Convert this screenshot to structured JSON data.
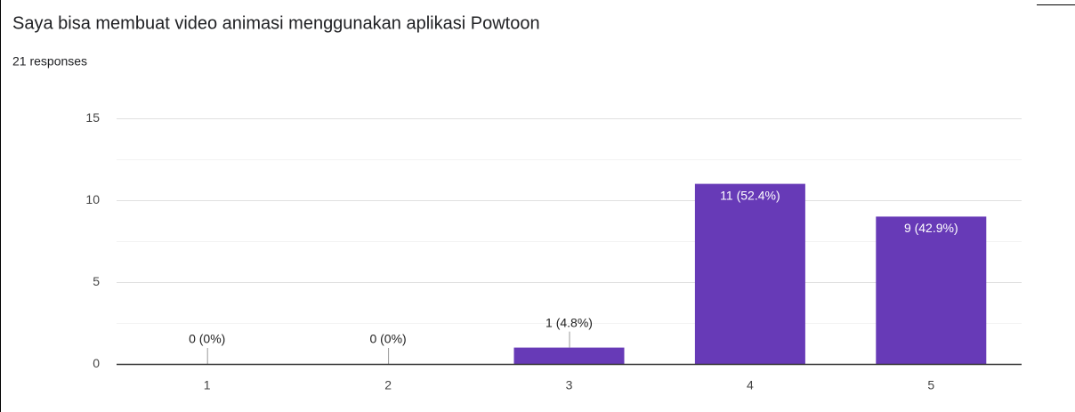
{
  "chart_data": {
    "type": "bar",
    "title": "Saya bisa membuat video animasi menggunakan aplikasi Powtoon",
    "subtitle": "21 responses",
    "categories": [
      "1",
      "2",
      "3",
      "4",
      "5"
    ],
    "values": [
      0,
      0,
      1,
      11,
      9
    ],
    "value_labels": [
      "0 (0%)",
      "0 (0%)",
      "1 (4.8%)",
      "11 (52.4%)",
      "9 (42.9%)"
    ],
    "color": "#673ab7",
    "ylim": [
      0,
      15
    ],
    "yticks": [
      0,
      5,
      10,
      15
    ],
    "minor_yticks": [
      2.5,
      7.5,
      12.5
    ],
    "grid": true
  }
}
